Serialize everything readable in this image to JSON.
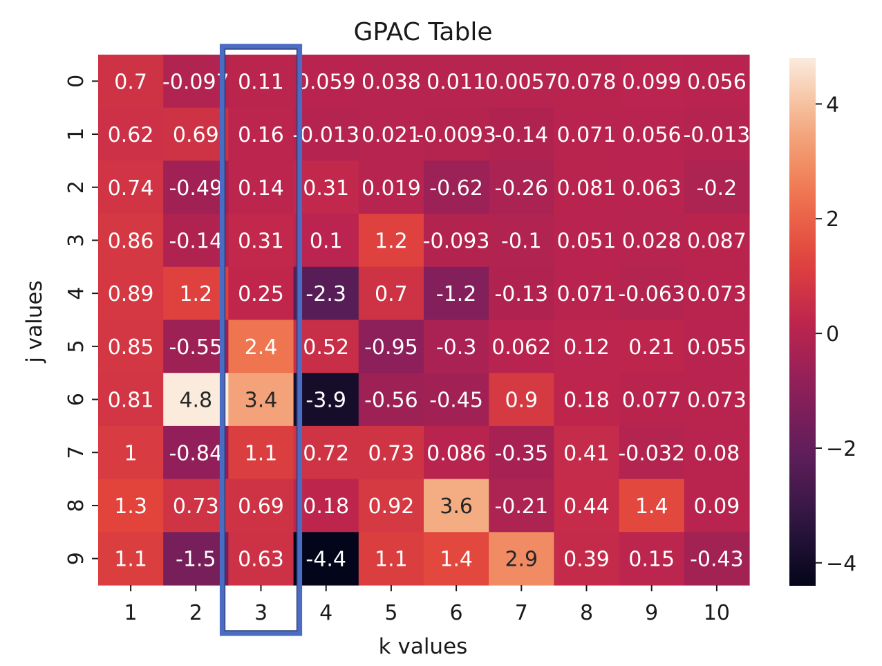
{
  "chart_data": {
    "type": "heatmap",
    "title": "GPAC Table",
    "xlabel": "k values",
    "ylabel": "j values",
    "x_ticks": [
      "1",
      "2",
      "3",
      "4",
      "5",
      "6",
      "7",
      "8",
      "9",
      "10"
    ],
    "y_ticks": [
      "0",
      "1",
      "2",
      "3",
      "4",
      "5",
      "6",
      "7",
      "8",
      "9"
    ],
    "values": [
      [
        0.7,
        -0.097,
        0.11,
        0.059,
        0.038,
        0.011,
        0.0057,
        0.078,
        0.099,
        0.056
      ],
      [
        0.62,
        0.69,
        0.16,
        -0.013,
        0.021,
        -0.0093,
        -0.14,
        0.071,
        0.056,
        -0.013
      ],
      [
        0.74,
        -0.49,
        0.14,
        0.31,
        0.019,
        -0.62,
        -0.26,
        0.081,
        0.063,
        -0.2
      ],
      [
        0.86,
        -0.14,
        0.31,
        0.1,
        1.2,
        -0.093,
        -0.1,
        0.051,
        0.028,
        0.087
      ],
      [
        0.89,
        1.2,
        0.25,
        -2.3,
        0.7,
        -1.2,
        -0.13,
        0.071,
        -0.063,
        0.073
      ],
      [
        0.85,
        -0.55,
        2.4,
        0.52,
        -0.95,
        -0.3,
        0.062,
        0.12,
        0.21,
        0.055
      ],
      [
        0.81,
        4.8,
        3.4,
        -3.9,
        -0.56,
        -0.45,
        0.9,
        0.18,
        0.077,
        0.073
      ],
      [
        1,
        -0.84,
        1.1,
        0.72,
        0.73,
        0.086,
        -0.35,
        0.41,
        -0.032,
        0.08
      ],
      [
        1.3,
        0.73,
        0.69,
        0.18,
        0.92,
        3.6,
        -0.21,
        0.44,
        1.4,
        0.09
      ],
      [
        1.1,
        -1.5,
        0.63,
        -4.4,
        1.1,
        1.4,
        2.9,
        0.39,
        0.15,
        -0.43
      ]
    ],
    "cell_labels": [
      [
        "0.7",
        "-0.097",
        "0.11",
        "0.059",
        "0.038",
        "0.011",
        "0.0057",
        "0.078",
        "0.099",
        "0.056"
      ],
      [
        "0.62",
        "0.69",
        "0.16",
        "-0.013",
        "0.021",
        "-0.0093",
        "-0.14",
        "0.071",
        "0.056",
        "-0.013"
      ],
      [
        "0.74",
        "-0.49",
        "0.14",
        "0.31",
        "0.019",
        "-0.62",
        "-0.26",
        "0.081",
        "0.063",
        "-0.2"
      ],
      [
        "0.86",
        "-0.14",
        "0.31",
        "0.1",
        "1.2",
        "-0.093",
        "-0.1",
        "0.051",
        "0.028",
        "0.087"
      ],
      [
        "0.89",
        "1.2",
        "0.25",
        "-2.3",
        "0.7",
        "-1.2",
        "-0.13",
        "0.071",
        "-0.063",
        "0.073"
      ],
      [
        "0.85",
        "-0.55",
        "2.4",
        "0.52",
        "-0.95",
        "-0.3",
        "0.062",
        "0.12",
        "0.21",
        "0.055"
      ],
      [
        "0.81",
        "4.8",
        "3.4",
        "-3.9",
        "-0.56",
        "-0.45",
        "0.9",
        "0.18",
        "0.077",
        "0.073"
      ],
      [
        "1",
        "-0.84",
        "1.1",
        "0.72",
        "0.73",
        "0.086",
        "-0.35",
        "0.41",
        "-0.032",
        "0.08"
      ],
      [
        "1.3",
        "0.73",
        "0.69",
        "0.18",
        "0.92",
        "3.6",
        "-0.21",
        "0.44",
        "1.4",
        "0.09"
      ],
      [
        "1.1",
        "-1.5",
        "0.63",
        "-4.4",
        "1.1",
        "1.4",
        "2.9",
        "0.39",
        "0.15",
        "-0.43"
      ]
    ],
    "color_range": [
      -4.4,
      4.8
    ],
    "colorbar": {
      "ticks": [
        4,
        2,
        0,
        -2,
        -4
      ],
      "tick_labels": [
        "4",
        "2",
        "0",
        "−2",
        "−4"
      ]
    },
    "colormap": "rocket",
    "highlight": {
      "column_label": "3",
      "color": "#4a6cc3"
    }
  }
}
